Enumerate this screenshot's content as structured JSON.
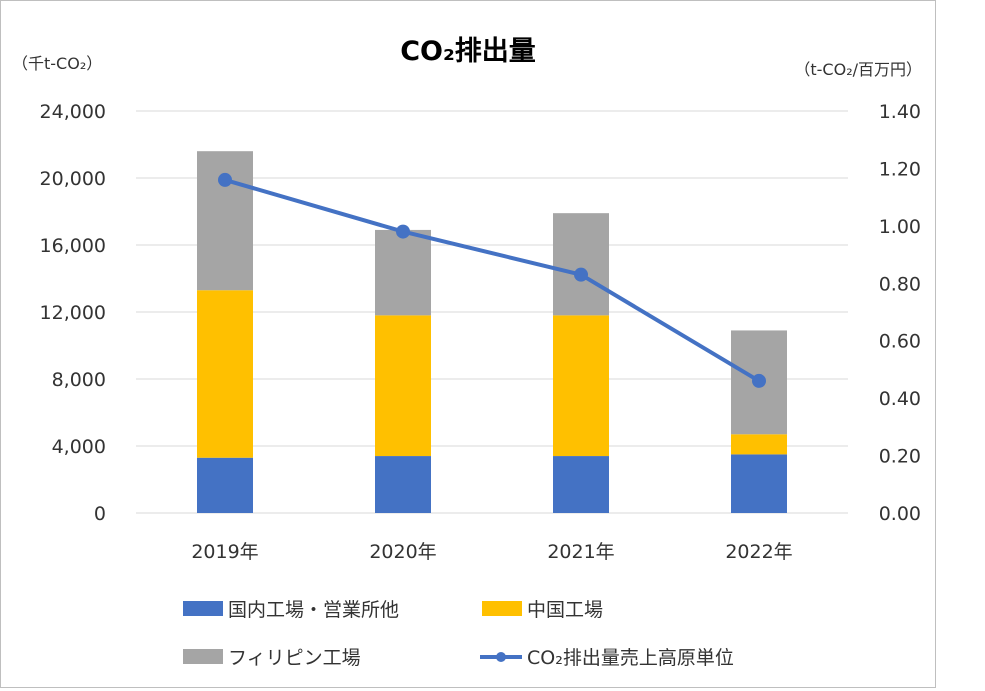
{
  "chart_data": {
    "type": "bar",
    "stacked": true,
    "title": "CO₂排出量",
    "ylabel_left": "（千t-CO₂）",
    "ylabel_right": "（t-CO₂/百万円）",
    "categories": [
      "2019年",
      "2020年",
      "2021年",
      "2022年"
    ],
    "y_left": {
      "min": 0,
      "max": 24000,
      "ticks": [
        0,
        4000,
        8000,
        12000,
        16000,
        20000,
        24000
      ],
      "tick_labels": [
        "0",
        "4,000",
        "8,000",
        "12,000",
        "16,000",
        "20,000",
        "24,000"
      ]
    },
    "y_right": {
      "min": 0,
      "max": 1.4,
      "ticks": [
        0,
        0.2,
        0.4,
        0.6,
        0.8,
        1.0,
        1.2,
        1.4
      ],
      "tick_labels": [
        "0.00",
        "0.20",
        "0.40",
        "0.60",
        "0.80",
        "1.00",
        "1.20",
        "1.40"
      ]
    },
    "grid": true,
    "legend_position": "bottom",
    "series": [
      {
        "name": "国内工場・営業所他",
        "type": "bar",
        "color": "#4472c4",
        "values": [
          3300,
          3400,
          3400,
          3500
        ]
      },
      {
        "name": "中国工場",
        "type": "bar",
        "color": "#ffc000",
        "values": [
          10000,
          8400,
          8400,
          1200
        ]
      },
      {
        "name": "フィリピン工場",
        "type": "bar",
        "color": "#a5a5a5",
        "values": [
          8300,
          5100,
          6100,
          6200
        ]
      },
      {
        "name": "CO₂排出量売上高原単位",
        "type": "line",
        "axis": "right",
        "color": "#4472c4",
        "values": [
          1.16,
          0.98,
          0.83,
          0.46
        ]
      }
    ]
  }
}
